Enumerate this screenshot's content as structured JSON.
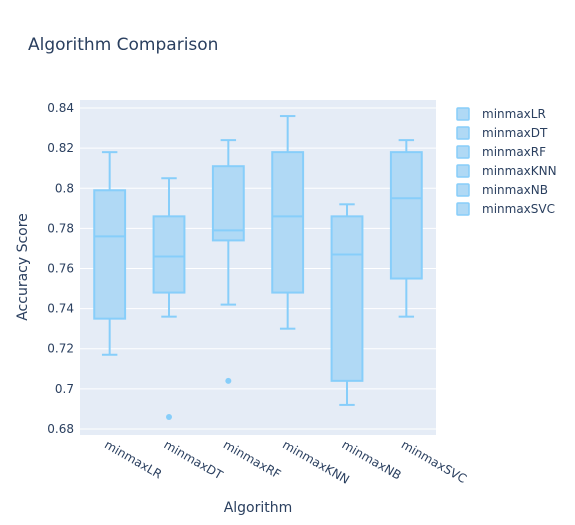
{
  "chart_data": {
    "type": "box",
    "title": "Algorithm Comparison",
    "xlabel": "Algorithm",
    "ylabel": "Accuracy Score",
    "ylim": [
      0.677,
      0.844
    ],
    "yticks": [
      0.68,
      0.7,
      0.72,
      0.74,
      0.76,
      0.78,
      0.8,
      0.82,
      0.84
    ],
    "ytick_labels": [
      "0.68",
      "0.7",
      "0.72",
      "0.74",
      "0.76",
      "0.78",
      "0.8",
      "0.82",
      "0.84"
    ],
    "grid": true,
    "legend_position": "top-right",
    "colors": {
      "box_line": "#87cefa",
      "box_fill": "#b0d9f5",
      "plot_bg": "#e5ecf6",
      "grid": "#ffffff",
      "text": "#2a3f5f"
    },
    "categories": [
      "minmaxLR",
      "minmaxDT",
      "minmaxRF",
      "minmaxKNN",
      "minmaxNB",
      "minmaxSVC"
    ],
    "series": [
      {
        "name": "minmaxLR",
        "whisker_low": 0.717,
        "q1": 0.735,
        "median": 0.776,
        "q3": 0.799,
        "whisker_high": 0.818,
        "outliers": []
      },
      {
        "name": "minmaxDT",
        "whisker_low": 0.736,
        "q1": 0.748,
        "median": 0.766,
        "q3": 0.786,
        "whisker_high": 0.805,
        "outliers": [
          0.686
        ]
      },
      {
        "name": "minmaxRF",
        "whisker_low": 0.742,
        "q1": 0.774,
        "median": 0.779,
        "q3": 0.811,
        "whisker_high": 0.824,
        "outliers": [
          0.704
        ]
      },
      {
        "name": "minmaxKNN",
        "whisker_low": 0.73,
        "q1": 0.748,
        "median": 0.786,
        "q3": 0.818,
        "whisker_high": 0.836,
        "outliers": []
      },
      {
        "name": "minmaxNB",
        "whisker_low": 0.692,
        "q1": 0.704,
        "median": 0.767,
        "q3": 0.786,
        "whisker_high": 0.792,
        "outliers": []
      },
      {
        "name": "minmaxSVC",
        "whisker_low": 0.736,
        "q1": 0.755,
        "median": 0.795,
        "q3": 0.818,
        "whisker_high": 0.824,
        "outliers": []
      }
    ]
  }
}
